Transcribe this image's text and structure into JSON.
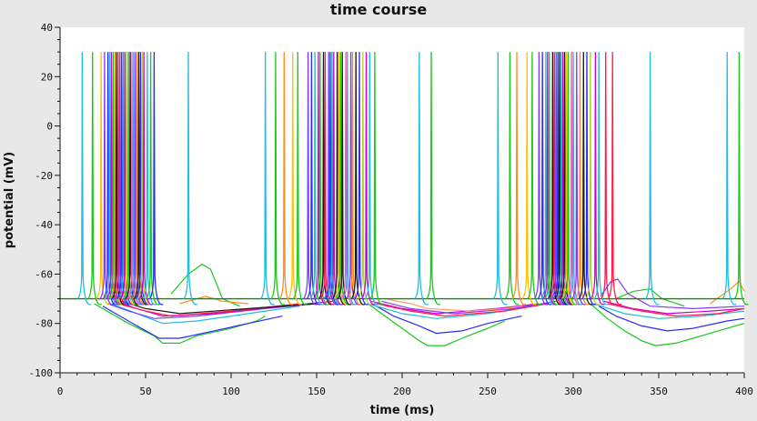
{
  "window": {
    "title": "time course"
  },
  "chart_data": {
    "type": "line",
    "title": "time course",
    "xlabel": "time (ms)",
    "ylabel": "potential (mV)",
    "xlim": [
      0,
      400
    ],
    "ylim": [
      -100,
      40
    ],
    "x_ticks": [
      0,
      50,
      100,
      150,
      200,
      250,
      300,
      350,
      400
    ],
    "y_ticks": [
      -100,
      -80,
      -60,
      -40,
      -20,
      0,
      20,
      40
    ],
    "x_tick_labels": [
      "0",
      "50",
      "100",
      "150",
      "200",
      "250",
      "300",
      "350",
      "400"
    ],
    "y_tick_labels": [
      "-100",
      "-80",
      "-60",
      "-40",
      "-20",
      "0",
      "20",
      "40"
    ],
    "grid": false,
    "legend": "none",
    "resting_potential_mv": -70,
    "spike_peak_mv": 30,
    "series_colors": [
      "#1fbde0",
      "#18c81a",
      "#ff8c1a",
      "#ffa366",
      "#ffc000",
      "#7a3cff",
      "#2a2aff",
      "#d000d0",
      "#ff1a4a",
      "#1a1a1a",
      "#00bbbb",
      "#b0d030",
      "#ff55aa",
      "#3a9fff"
    ],
    "spikes": [
      {
        "t": 13,
        "color": "#1fbde0"
      },
      {
        "t": 19,
        "color": "#18c81a"
      },
      {
        "t": 24,
        "color": "#ffc000"
      },
      {
        "t": 26,
        "color": "#7a3cff"
      },
      {
        "t": 28,
        "color": "#2a2aff"
      },
      {
        "t": 29,
        "color": "#1fbde0"
      },
      {
        "t": 30,
        "color": "#d000d0"
      },
      {
        "t": 31,
        "color": "#18c81a"
      },
      {
        "t": 32,
        "color": "#ff8c1a"
      },
      {
        "t": 33,
        "color": "#1a1a1a"
      },
      {
        "t": 34,
        "color": "#ff1a4a"
      },
      {
        "t": 35,
        "color": "#7a3cff"
      },
      {
        "t": 36,
        "color": "#2a2aff"
      },
      {
        "t": 37,
        "color": "#00bbbb"
      },
      {
        "t": 38,
        "color": "#d000d0"
      },
      {
        "t": 39,
        "color": "#ffc000"
      },
      {
        "t": 40,
        "color": "#18c81a"
      },
      {
        "t": 41,
        "color": "#1a1a1a"
      },
      {
        "t": 42,
        "color": "#ff55aa"
      },
      {
        "t": 43,
        "color": "#3a9fff"
      },
      {
        "t": 44,
        "color": "#7a3cff"
      },
      {
        "t": 45,
        "color": "#ff8c1a"
      },
      {
        "t": 46,
        "color": "#1a1a1a"
      },
      {
        "t": 47,
        "color": "#2a2aff"
      },
      {
        "t": 48,
        "color": "#b0d030"
      },
      {
        "t": 49,
        "color": "#d000d0"
      },
      {
        "t": 51,
        "color": "#1fbde0"
      },
      {
        "t": 53,
        "color": "#18c81a"
      },
      {
        "t": 55,
        "color": "#2a2aff"
      },
      {
        "t": 75,
        "color": "#1fbde0"
      },
      {
        "t": 120,
        "color": "#1fbde0"
      },
      {
        "t": 126,
        "color": "#18c81a"
      },
      {
        "t": 131,
        "color": "#ff8c1a"
      },
      {
        "t": 136,
        "color": "#ffc000"
      },
      {
        "t": 139,
        "color": "#18c81a"
      },
      {
        "t": 145,
        "color": "#7a3cff"
      },
      {
        "t": 147,
        "color": "#2a2aff"
      },
      {
        "t": 149,
        "color": "#1fbde0"
      },
      {
        "t": 151,
        "color": "#d000d0"
      },
      {
        "t": 152,
        "color": "#18c81a"
      },
      {
        "t": 154,
        "color": "#1a1a1a"
      },
      {
        "t": 155,
        "color": "#ff1a4a"
      },
      {
        "t": 157,
        "color": "#7a3cff"
      },
      {
        "t": 158,
        "color": "#2a2aff"
      },
      {
        "t": 159,
        "color": "#00bbbb"
      },
      {
        "t": 160,
        "color": "#d000d0"
      },
      {
        "t": 162,
        "color": "#1a1a1a"
      },
      {
        "t": 163,
        "color": "#ffc000"
      },
      {
        "t": 164,
        "color": "#18c81a"
      },
      {
        "t": 165,
        "color": "#1a1a1a"
      },
      {
        "t": 167,
        "color": "#ff55aa"
      },
      {
        "t": 168,
        "color": "#3a9fff"
      },
      {
        "t": 170,
        "color": "#7a3cff"
      },
      {
        "t": 171,
        "color": "#ff8c1a"
      },
      {
        "t": 173,
        "color": "#1a1a1a"
      },
      {
        "t": 175,
        "color": "#2a2aff"
      },
      {
        "t": 177,
        "color": "#b0d030"
      },
      {
        "t": 179,
        "color": "#d000d0"
      },
      {
        "t": 181,
        "color": "#1fbde0"
      },
      {
        "t": 184,
        "color": "#18c81a"
      },
      {
        "t": 210,
        "color": "#1fbde0"
      },
      {
        "t": 217,
        "color": "#18c81a"
      },
      {
        "t": 256,
        "color": "#1fbde0"
      },
      {
        "t": 263,
        "color": "#18c81a"
      },
      {
        "t": 267,
        "color": "#ff8c1a"
      },
      {
        "t": 273,
        "color": "#ffc000"
      },
      {
        "t": 276,
        "color": "#18c81a"
      },
      {
        "t": 280,
        "color": "#7a3cff"
      },
      {
        "t": 282,
        "color": "#2a2aff"
      },
      {
        "t": 284,
        "color": "#1fbde0"
      },
      {
        "t": 285,
        "color": "#d000d0"
      },
      {
        "t": 286,
        "color": "#18c81a"
      },
      {
        "t": 288,
        "color": "#1a1a1a"
      },
      {
        "t": 289,
        "color": "#ff1a4a"
      },
      {
        "t": 290,
        "color": "#7a3cff"
      },
      {
        "t": 291,
        "color": "#2a2aff"
      },
      {
        "t": 292,
        "color": "#1a1a1a"
      },
      {
        "t": 293,
        "color": "#00bbbb"
      },
      {
        "t": 294,
        "color": "#d000d0"
      },
      {
        "t": 295,
        "color": "#1a1a1a"
      },
      {
        "t": 296,
        "color": "#ffc000"
      },
      {
        "t": 297,
        "color": "#18c81a"
      },
      {
        "t": 299,
        "color": "#ff55aa"
      },
      {
        "t": 300,
        "color": "#3a9fff"
      },
      {
        "t": 302,
        "color": "#7a3cff"
      },
      {
        "t": 304,
        "color": "#ff8c1a"
      },
      {
        "t": 306,
        "color": "#1a1a1a"
      },
      {
        "t": 308,
        "color": "#2a2aff"
      },
      {
        "t": 310,
        "color": "#b0d030"
      },
      {
        "t": 313,
        "color": "#d000d0"
      },
      {
        "t": 315,
        "color": "#1fbde0"
      },
      {
        "t": 319,
        "color": "#ff1a4a"
      },
      {
        "t": 323,
        "color": "#ff1a4a"
      },
      {
        "t": 345,
        "color": "#1fbde0"
      },
      {
        "t": 390,
        "color": "#1fbde0"
      },
      {
        "t": 397,
        "color": "#18c81a"
      }
    ],
    "afterpotential_traces": [
      {
        "color": "#18c81a",
        "points": [
          [
            20,
            -72
          ],
          [
            30,
            -76
          ],
          [
            40,
            -80
          ],
          [
            55,
            -85
          ],
          [
            60,
            -88
          ],
          [
            70,
            -88
          ],
          [
            80,
            -85
          ],
          [
            100,
            -82
          ],
          [
            115,
            -79
          ],
          [
            120,
            -77
          ]
        ]
      },
      {
        "color": "#2a2aff",
        "points": [
          [
            25,
            -73
          ],
          [
            35,
            -77
          ],
          [
            45,
            -81
          ],
          [
            58,
            -86
          ],
          [
            70,
            -86
          ],
          [
            90,
            -83
          ],
          [
            110,
            -80
          ],
          [
            130,
            -77
          ]
        ]
      },
      {
        "color": "#1fbde0",
        "points": [
          [
            30,
            -72
          ],
          [
            45,
            -76
          ],
          [
            60,
            -80
          ],
          [
            80,
            -79
          ],
          [
            110,
            -76
          ],
          [
            140,
            -73
          ]
        ]
      },
      {
        "color": "#7a3cff",
        "points": [
          [
            28,
            -72
          ],
          [
            40,
            -75
          ],
          [
            55,
            -78
          ],
          [
            80,
            -77
          ],
          [
            120,
            -74
          ],
          [
            150,
            -72
          ]
        ]
      },
      {
        "color": "#d000d0",
        "points": [
          [
            32,
            -71
          ],
          [
            45,
            -74
          ],
          [
            60,
            -77
          ],
          [
            90,
            -76
          ],
          [
            130,
            -73
          ],
          [
            160,
            -71
          ]
        ]
      },
      {
        "color": "#ff1a4a",
        "points": [
          [
            34,
            -72
          ],
          [
            50,
            -75
          ],
          [
            65,
            -77
          ],
          [
            100,
            -75
          ],
          [
            140,
            -72
          ]
        ]
      },
      {
        "color": "#1a1a1a",
        "points": [
          [
            36,
            -71
          ],
          [
            50,
            -74
          ],
          [
            70,
            -76
          ],
          [
            110,
            -74
          ],
          [
            150,
            -72
          ]
        ]
      },
      {
        "color": "#18c81a",
        "points": [
          [
            65,
            -68
          ],
          [
            75,
            -60
          ],
          [
            83,
            -56
          ],
          [
            88,
            -58
          ],
          [
            95,
            -70
          ],
          [
            105,
            -73
          ]
        ]
      },
      {
        "color": "#ff8c1a",
        "points": [
          [
            70,
            -72
          ],
          [
            80,
            -70
          ],
          [
            85,
            -69
          ],
          [
            95,
            -71
          ],
          [
            110,
            -72
          ]
        ]
      },
      {
        "color": "#18c81a",
        "points": [
          [
            180,
            -72
          ],
          [
            190,
            -77
          ],
          [
            200,
            -82
          ],
          [
            210,
            -87
          ],
          [
            215,
            -89
          ],
          [
            225,
            -89
          ],
          [
            235,
            -86
          ],
          [
            250,
            -82
          ],
          [
            260,
            -79
          ]
        ]
      },
      {
        "color": "#2a2aff",
        "points": [
          [
            185,
            -73
          ],
          [
            195,
            -77
          ],
          [
            210,
            -81
          ],
          [
            220,
            -84
          ],
          [
            235,
            -83
          ],
          [
            250,
            -80
          ],
          [
            270,
            -77
          ]
        ]
      },
      {
        "color": "#1fbde0",
        "points": [
          [
            180,
            -72
          ],
          [
            200,
            -76
          ],
          [
            220,
            -78
          ],
          [
            250,
            -76
          ],
          [
            275,
            -73
          ]
        ]
      },
      {
        "color": "#d000d0",
        "points": [
          [
            182,
            -71
          ],
          [
            200,
            -74
          ],
          [
            220,
            -76
          ],
          [
            255,
            -74
          ],
          [
            280,
            -72
          ]
        ]
      },
      {
        "color": "#ff1a4a",
        "points": [
          [
            185,
            -72
          ],
          [
            205,
            -75
          ],
          [
            225,
            -77
          ],
          [
            260,
            -75
          ],
          [
            285,
            -72
          ]
        ]
      },
      {
        "color": "#7a3cff",
        "points": [
          [
            188,
            -71
          ],
          [
            205,
            -74
          ],
          [
            230,
            -76
          ],
          [
            265,
            -74
          ],
          [
            290,
            -71
          ]
        ]
      },
      {
        "color": "#ffa366",
        "points": [
          [
            190,
            -70
          ],
          [
            205,
            -72
          ],
          [
            215,
            -74
          ],
          [
            240,
            -75
          ],
          [
            260,
            -74
          ],
          [
            270,
            -73
          ]
        ]
      },
      {
        "color": "#18c81a",
        "points": [
          [
            310,
            -72
          ],
          [
            320,
            -78
          ],
          [
            330,
            -83
          ],
          [
            340,
            -87
          ],
          [
            348,
            -89
          ],
          [
            360,
            -88
          ],
          [
            375,
            -85
          ],
          [
            390,
            -82
          ],
          [
            400,
            -80
          ]
        ]
      },
      {
        "color": "#2a2aff",
        "points": [
          [
            315,
            -73
          ],
          [
            325,
            -77
          ],
          [
            340,
            -81
          ],
          [
            355,
            -83
          ],
          [
            370,
            -82
          ],
          [
            390,
            -79
          ],
          [
            400,
            -78
          ]
        ]
      },
      {
        "color": "#1fbde0",
        "points": [
          [
            312,
            -72
          ],
          [
            330,
            -76
          ],
          [
            350,
            -78
          ],
          [
            375,
            -77
          ],
          [
            400,
            -75
          ]
        ]
      },
      {
        "color": "#d000d0",
        "points": [
          [
            318,
            -71
          ],
          [
            335,
            -74
          ],
          [
            355,
            -76
          ],
          [
            380,
            -75
          ],
          [
            400,
            -74
          ]
        ]
      },
      {
        "color": "#ff1a4a",
        "points": [
          [
            320,
            -72
          ],
          [
            340,
            -75
          ],
          [
            360,
            -77
          ],
          [
            385,
            -76
          ],
          [
            400,
            -74
          ]
        ]
      },
      {
        "color": "#7a3cff",
        "points": [
          [
            316,
            -69
          ],
          [
            322,
            -63
          ],
          [
            326,
            -62
          ],
          [
            332,
            -68
          ],
          [
            345,
            -73
          ],
          [
            370,
            -74
          ],
          [
            400,
            -73
          ]
        ]
      },
      {
        "color": "#18c81a",
        "points": [
          [
            325,
            -70
          ],
          [
            335,
            -67
          ],
          [
            345,
            -66
          ],
          [
            352,
            -70
          ],
          [
            365,
            -73
          ]
        ]
      },
      {
        "color": "#ff8c1a",
        "points": [
          [
            380,
            -72
          ],
          [
            392,
            -66
          ],
          [
            397,
            -63
          ],
          [
            400,
            -67
          ]
        ]
      }
    ]
  }
}
